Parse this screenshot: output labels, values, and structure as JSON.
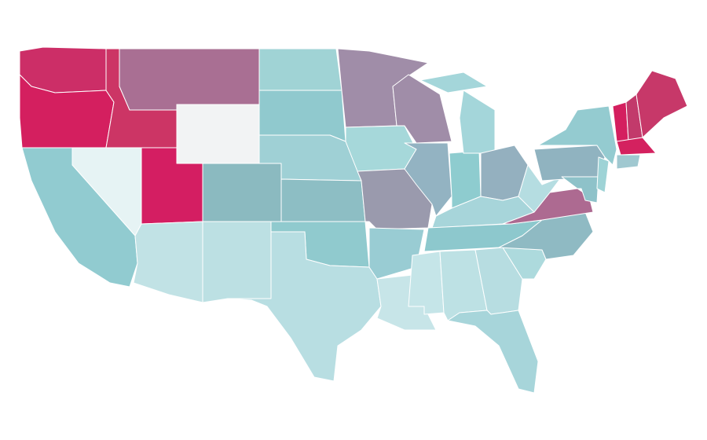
{
  "map": {
    "region_colors": [
      "#cc2e67",
      "#d41f5f",
      "#cc3565",
      "#a96f93",
      "#f2f3f4",
      "#e6f3f4",
      "#91cbd0",
      "#d41e62",
      "#8bbac0",
      "#c1e2e5",
      "#bce0e3",
      "#a0d3d5",
      "#90c9ce",
      "#9fd0d5",
      "#8dbec4",
      "#90cace",
      "#b8dee2",
      "#a08da8",
      "#a6d8da",
      "#9a9aad",
      "#99ccd3",
      "#c7e5e8",
      "#a08da8",
      "#93b3c2",
      "#8ecccf",
      "#a4d6da",
      "#a4d6da",
      "#94b0bf",
      "#a7d5da",
      "#8dc8cd",
      "#c5e5e8",
      "#bde1e4",
      "#b7dde1",
      "#a7d5da",
      "#addadd",
      "#8fbac3",
      "#ad6a91",
      "#b5dde1",
      "#90b3c0",
      "#94cbd0",
      "#8ec2c9",
      "#9ed3d6",
      "#d41f5f",
      "#c23a6b",
      "#c73869",
      "#d4215f",
      "#a0c8d0"
    ]
  }
}
